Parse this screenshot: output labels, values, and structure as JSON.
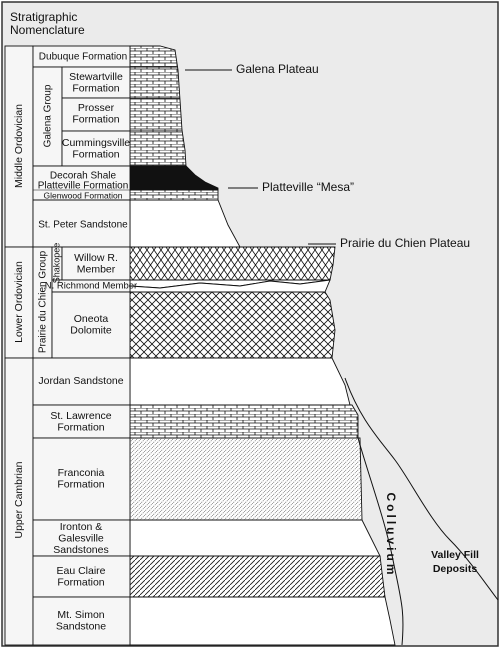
{
  "title": [
    "Stratigraphic",
    "Nomenclature"
  ],
  "systems": [
    "Middle Ordovician",
    "Lower Ordovician",
    "Upper Cambrian"
  ],
  "groups": [
    "Galena Group",
    "Prairie du Chien Group",
    "Shakopee"
  ],
  "units": [
    [
      "Dubuque Formation"
    ],
    [
      "Stewartville",
      "Formation"
    ],
    [
      "Prosser",
      "Formation"
    ],
    [
      "Cummingsville",
      "Formation"
    ],
    [
      "Decorah Shale"
    ],
    [
      "Platteville Formation"
    ],
    [
      "Glenwood Formation"
    ],
    [
      "St. Peter Sandstone"
    ],
    [
      "Willow R.",
      "Member"
    ],
    [
      "N. Richmond Member"
    ],
    [
      "Oneota",
      "Dolomite"
    ],
    [
      "Jordan Sandstone"
    ],
    [
      "St. Lawrence",
      "Formation"
    ],
    [
      "Franconia",
      "Formation"
    ],
    [
      "Ironton &",
      "Galesville",
      "Sandstones"
    ],
    [
      "Eau Claire",
      "Formation"
    ],
    [
      "Mt. Simon",
      "Sandstone"
    ]
  ],
  "landforms": [
    "Galena Plateau",
    "Platteville “Mesa”",
    "Prairie du Chien Plateau"
  ],
  "colluvium": "Colluvium",
  "valley_fill": [
    "Valley Fill",
    "Deposits"
  ]
}
